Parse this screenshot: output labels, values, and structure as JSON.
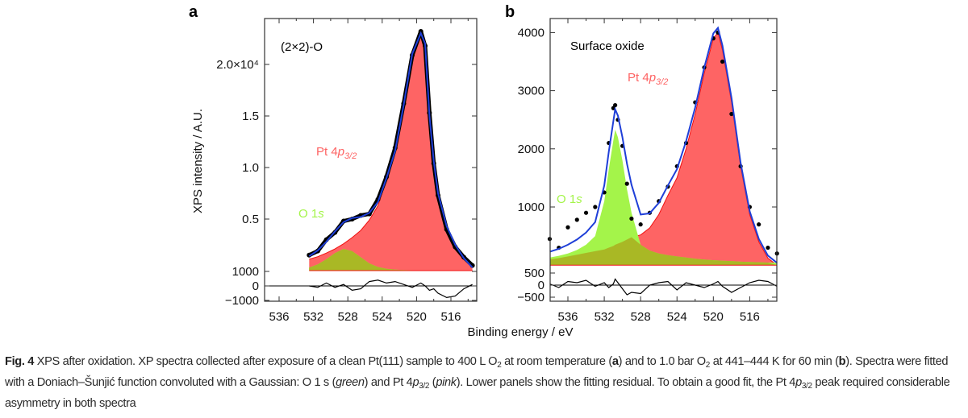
{
  "figure": {
    "panel_a_letter": "a",
    "panel_b_letter": "b",
    "xlabel": "Binding energy / eV",
    "ylabel": "XPS intensity / A.U."
  },
  "caption": {
    "label": "Fig. 4",
    "s1": " XPS after oxidation. XP spectra collected after exposure of a clean Pt(111) sample to 400 L O",
    "s1_sub": "2",
    "s2": " at room temperature (",
    "s2_bold": "a",
    "s3": ") and to 1.0 bar O",
    "s3_sub": "2",
    "s4": " at 441–444 K for 60 min (",
    "s4_bold": "b",
    "s5": "). Spectra were fitted with a Doniach–Šunjić function convoluted with a Gaussian: O 1 s (",
    "s5_ital": "green",
    "s6": ") and Pt 4",
    "s6_ital": "p",
    "s6_sub": "3/2",
    "s7": " (",
    "s7_ital": "pink",
    "s8": "). Lower panels show the fitting residual. To obtain a good fit, the Pt 4",
    "s8_ital": "p",
    "s8_sub": "3/2",
    "s9": " peak required considerable asymmetry in both spectra"
  },
  "colors": {
    "pt_fill": "#fe6464",
    "pt_line": "#f01010",
    "o_fill": "#a4f44a",
    "overlap_fill": "#a9b825",
    "fit_line": "#1f3fd8",
    "data": "#000000"
  },
  "chart_data": [
    {
      "panel": "a",
      "type": "line",
      "annotation": "(2×2)-O",
      "label_pt": {
        "main": "Pt 4",
        "ital": "p",
        "sub": "3/2"
      },
      "label_o": {
        "main": "O 1",
        "ital": "s"
      },
      "xlabel": "Binding energy / eV",
      "ylabel": "XPS intensity / A.U.",
      "xlim": [
        537.7,
        513.0
      ],
      "x_ticks": [
        536,
        532,
        528,
        524,
        520,
        516
      ],
      "x_tick_labels": [
        "536",
        "532",
        "528",
        "524",
        "520",
        "516"
      ],
      "ylim_main": [
        0,
        24500
      ],
      "y_ticks_main": [
        5000,
        10000,
        15000,
        20000
      ],
      "y_tick_labels_main": [
        "0.5",
        "1.0",
        "1.5",
        "2.0×10⁴"
      ],
      "ylim_residual": [
        -1100,
        1000
      ],
      "y_ticks_residual": [
        1000,
        0,
        -1000
      ],
      "y_tick_labels_residual": [
        "1000",
        "0",
        "−1000"
      ],
      "x": [
        532.5,
        531.5,
        530.5,
        529.5,
        528.5,
        527.5,
        526.5,
        525.5,
        524.5,
        523.5,
        522.5,
        521.5,
        520.5,
        519.5,
        519.0,
        518.5,
        518.0,
        517.5,
        516.5,
        515.5,
        514.5,
        513.5
      ],
      "series": [
        {
          "name": "Pt 4p3/2",
          "values": [
            1100,
            1350,
            1700,
            2100,
            2600,
            3200,
            3900,
            4900,
            6300,
            8800,
            11500,
            16000,
            21000,
            23000,
            22000,
            15000,
            10600,
            7500,
            4300,
            2500,
            1200,
            300
          ]
        },
        {
          "name": "O 1s",
          "values": [
            300,
            600,
            1100,
            1700,
            2100,
            1900,
            1300,
            700,
            350,
            180,
            100,
            60,
            40,
            30,
            25,
            20,
            18,
            15,
            10,
            8,
            5,
            3
          ]
        },
        {
          "name": "fit",
          "values": [
            1400,
            1950,
            2800,
            3800,
            4700,
            5100,
            5200,
            5600,
            6650,
            8980,
            11600,
            16060,
            21040,
            23030,
            22025,
            15020,
            10618,
            7515,
            4310,
            2508,
            1205,
            303
          ]
        },
        {
          "name": "measured",
          "values": [
            1500,
            1900,
            3000,
            3700,
            4800,
            5000,
            5350,
            5500,
            6900,
            9100,
            11900,
            16200,
            20900,
            23200,
            21800,
            15300,
            10400,
            7300,
            4000,
            2300,
            1300,
            500
          ]
        }
      ],
      "residual": [
        0,
        -100,
        200,
        -100,
        100,
        -300,
        -200,
        300,
        400,
        200,
        300,
        100,
        -100,
        200,
        0,
        -300,
        -200,
        -500,
        -800,
        -700,
        -200,
        100
      ]
    },
    {
      "panel": "b",
      "type": "line",
      "annotation": "Surface oxide",
      "label_pt": {
        "main": "Pt 4",
        "ital": "p",
        "sub": "3/2"
      },
      "label_o": {
        "main": "O 1",
        "ital": "s"
      },
      "xlabel": "Binding energy / eV",
      "xlim": [
        537.95,
        513.0
      ],
      "x_ticks": [
        536,
        532,
        528,
        524,
        520,
        516
      ],
      "x_tick_labels": [
        "536",
        "532",
        "528",
        "524",
        "520",
        "516"
      ],
      "ylim_main": [
        0,
        4250
      ],
      "y_ticks_main": [
        1000,
        2000,
        3000,
        4000
      ],
      "y_tick_labels_main": [
        "1000",
        "2000",
        "3000",
        "4000"
      ],
      "ylim_residual": [
        -650,
        500
      ],
      "y_ticks_residual": [
        500,
        0,
        -500
      ],
      "y_tick_labels_residual": [
        "500",
        "0",
        "−500"
      ],
      "x": [
        538,
        537,
        536,
        535,
        534,
        533,
        532,
        531.5,
        531,
        530.8,
        530.5,
        530,
        529.5,
        529,
        528,
        527,
        526,
        525,
        524,
        523,
        522,
        521,
        520,
        519.5,
        519,
        518,
        517,
        516,
        515,
        514,
        513
      ],
      "series": [
        {
          "name": "Pt 4p3/2",
          "values": [
            100,
            120,
            150,
            180,
            210,
            240,
            270,
            300,
            330,
            350,
            370,
            400,
            440,
            480,
            520,
            640,
            870,
            1200,
            1500,
            2000,
            2600,
            3300,
            3900,
            4000,
            3700,
            2800,
            1700,
            870,
            400,
            120,
            0
          ]
        },
        {
          "name": "O 1s",
          "values": [
            130,
            160,
            200,
            260,
            350,
            500,
            1100,
            1650,
            2150,
            2330,
            2200,
            1800,
            1300,
            900,
            350,
            250,
            200,
            170,
            150,
            130,
            110,
            95,
            85,
            80,
            75,
            70,
            60,
            55,
            50,
            45,
            40
          ]
        },
        {
          "name": "fit",
          "values": [
            230,
            280,
            350,
            440,
            560,
            740,
            1370,
            1950,
            2480,
            2680,
            2570,
            2200,
            1740,
            1380,
            870,
            890,
            1070,
            1370,
            1650,
            2130,
            2710,
            3395,
            3985,
            4080,
            3775,
            2870,
            1760,
            925,
            450,
            165,
            40
          ]
        },
        {
          "name": "measured",
          "values": [
            450,
            300,
            650,
            780,
            900,
            1000,
            1250,
            2100,
            2700,
            2750,
            2500,
            2050,
            1400,
            800,
            700,
            900,
            1100,
            1350,
            1700,
            2100,
            2800,
            3400,
            3900,
            4000,
            3500,
            2600,
            1700,
            1000,
            700,
            300,
            200
          ]
        }
      ],
      "residual": [
        50,
        -100,
        150,
        100,
        200,
        -50,
        100,
        -100,
        50,
        250,
        100,
        -150,
        -400,
        -300,
        -350,
        0,
        100,
        150,
        -200,
        100,
        0,
        -100,
        50,
        150,
        -50,
        -300,
        -100,
        100,
        200,
        150,
        -50
      ]
    }
  ]
}
